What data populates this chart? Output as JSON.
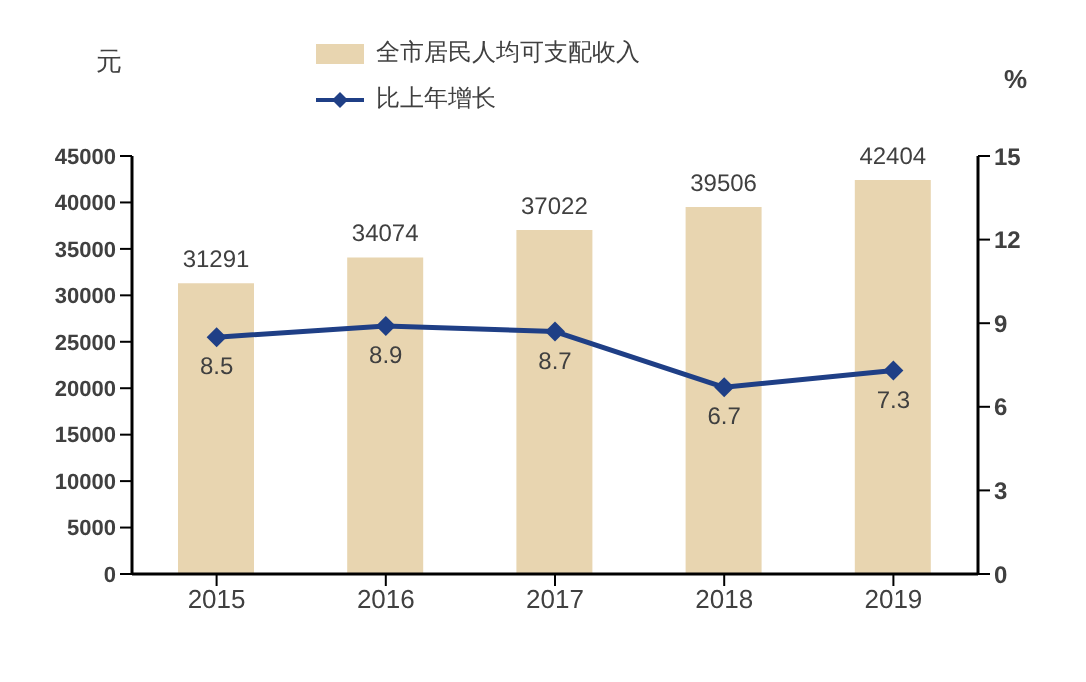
{
  "chart_data": {
    "type": "bar",
    "ylabel": "元",
    "y2label": "%",
    "categories": [
      "2015",
      "2016",
      "2017",
      "2018",
      "2019"
    ],
    "series": [
      {
        "name": "全市居民人均可支配收入",
        "color": "#e8d5b0",
        "values": [
          31291,
          34074,
          37022,
          39506,
          42404
        ]
      },
      {
        "name": "比上年增长",
        "type": "line",
        "axis": "y2",
        "color": "#1f3f86",
        "marker": "diamond",
        "values": [
          8.5,
          8.9,
          8.7,
          6.7,
          7.3
        ]
      }
    ],
    "ylim": [
      0,
      45000
    ],
    "yticks": [
      0,
      5000,
      10000,
      15000,
      20000,
      25000,
      30000,
      35000,
      40000,
      45000
    ],
    "y2lim": [
      0,
      15
    ],
    "y2ticks": [
      0,
      3,
      6,
      9,
      12,
      15
    ],
    "data_labels": true,
    "legend": "top"
  }
}
